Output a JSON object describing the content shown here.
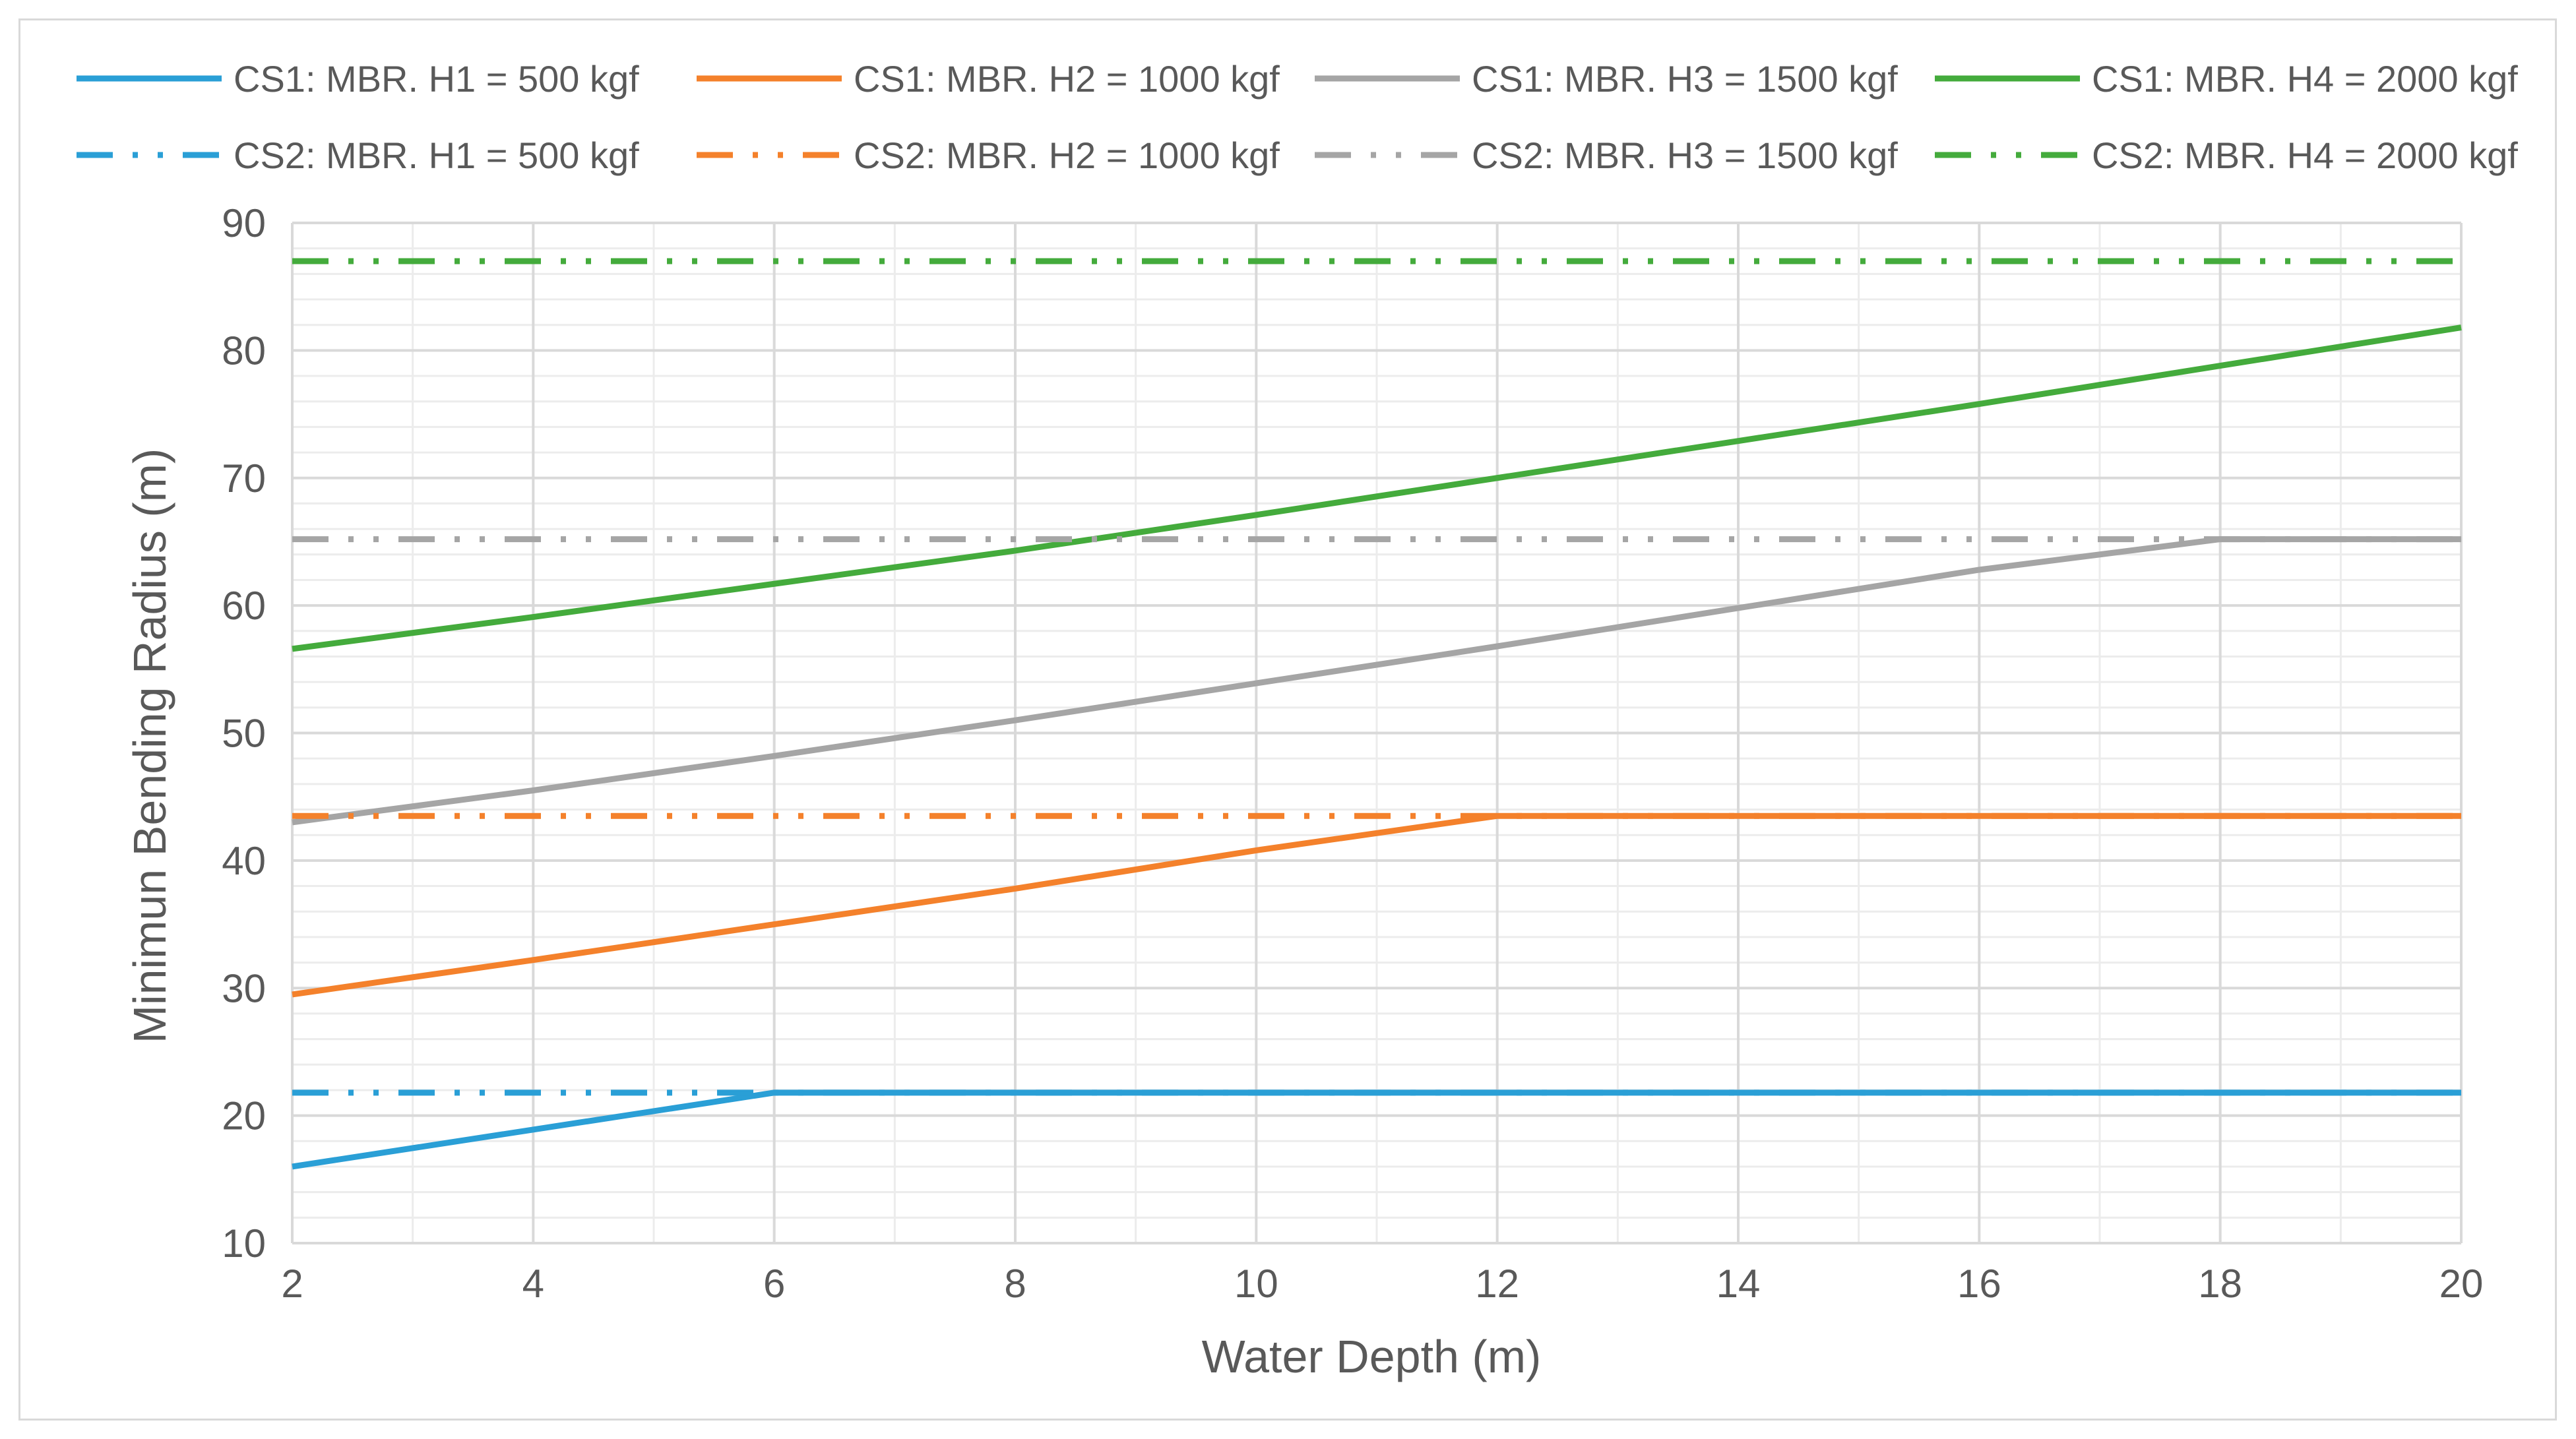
{
  "chart_data": {
    "type": "line",
    "xlabel": "Water Depth (m)",
    "ylabel": "Minimun Bending Radius (m)",
    "xlim": [
      2,
      20
    ],
    "ylim": [
      10,
      90
    ],
    "x_ticks": [
      2,
      4,
      6,
      8,
      10,
      12,
      14,
      16,
      18,
      20
    ],
    "y_ticks": [
      10,
      20,
      30,
      40,
      50,
      60,
      70,
      80,
      90
    ],
    "major_gridlines": true,
    "minor_gridlines": true,
    "legend_position": "top",
    "series": [
      {
        "name": "CS1: MBR. H1 = 500 kgf",
        "color": "#2a9fd6",
        "style": "solid",
        "x": [
          2,
          6,
          20
        ],
        "y": [
          16.0,
          21.8,
          21.8
        ]
      },
      {
        "name": "CS1: MBR. H2 = 1000 kgf",
        "color": "#f4812b",
        "style": "solid",
        "x": [
          2,
          4,
          6,
          8,
          10,
          12,
          20
        ],
        "y": [
          29.5,
          32.2,
          35.0,
          37.8,
          40.8,
          43.5,
          43.5
        ]
      },
      {
        "name": "CS1: MBR. H3 = 1500 kgf",
        "color": "#a5a5a5",
        "style": "solid",
        "x": [
          2,
          4,
          6,
          8,
          10,
          12,
          14,
          16,
          18,
          20
        ],
        "y": [
          43.0,
          45.5,
          48.2,
          51.0,
          53.9,
          56.8,
          59.8,
          62.8,
          65.2,
          65.2
        ]
      },
      {
        "name": "CS1: MBR. H4 = 2000 kgf",
        "color": "#44ab3c",
        "style": "solid",
        "x": [
          2,
          4,
          6,
          8,
          10,
          12,
          14,
          16,
          18,
          20
        ],
        "y": [
          56.6,
          59.1,
          61.7,
          64.3,
          67.1,
          70.0,
          72.9,
          75.8,
          78.8,
          81.8
        ]
      },
      {
        "name": "CS2: MBR. H1 = 500 kgf",
        "color": "#2a9fd6",
        "style": "dash-dot-dot",
        "x": [
          2,
          20
        ],
        "y": [
          21.8,
          21.8
        ]
      },
      {
        "name": "CS2: MBR. H2 = 1000 kgf",
        "color": "#f4812b",
        "style": "dash-dot-dot",
        "x": [
          2,
          20
        ],
        "y": [
          43.5,
          43.5
        ]
      },
      {
        "name": "CS2: MBR. H3 = 1500 kgf",
        "color": "#a5a5a5",
        "style": "dash-dot-dot",
        "x": [
          2,
          20
        ],
        "y": [
          65.2,
          65.2
        ]
      },
      {
        "name": "CS2: MBR. H4 = 2000 kgf",
        "color": "#44ab3c",
        "style": "dash-dot-dot",
        "x": [
          2,
          20
        ],
        "y": [
          87.0,
          87.0
        ]
      }
    ]
  },
  "colors": {
    "grid_major": "#d9d9d9",
    "grid_minor": "#ececec",
    "text": "#595959"
  }
}
